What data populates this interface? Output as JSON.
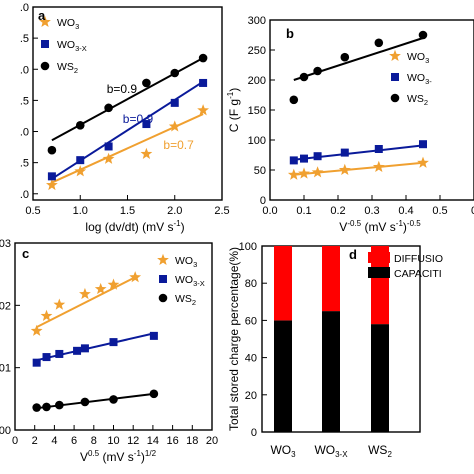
{
  "colors": {
    "orange": "#F0A030",
    "blue": "#0A1A9A",
    "black": "#000000",
    "red": "#FF0000"
  },
  "chart_data": [
    {
      "type": "scatter",
      "panel": "a",
      "xlabel": "log (dv/dt) (mV s",
      "xlabel_sup": "-1",
      "xlabel_end": ")",
      "xlim": [
        0.5,
        2.5
      ],
      "ylim": [
        0.95,
        2.5
      ],
      "xticks": [
        "0.5",
        "1.0",
        "1.5",
        "2.0",
        "2.5"
      ],
      "yticks": [
        {
          "v": 1.0,
          "t": ".0"
        },
        {
          "v": 1.25,
          "t": ".5"
        },
        {
          "v": 1.5,
          "t": ".0"
        },
        {
          "v": 1.75,
          "t": ".5"
        },
        {
          "v": 2.0,
          "t": ".0"
        },
        {
          "v": 2.25,
          "t": ".5"
        },
        {
          "v": 2.5,
          "t": ".0"
        }
      ],
      "series": [
        {
          "name": "WO",
          "sub": "3",
          "color": "orange",
          "marker": "star",
          "x": [
            0.7,
            1.0,
            1.3,
            1.7,
            2.0,
            2.3
          ],
          "y": [
            1.07,
            1.18,
            1.28,
            1.32,
            1.54,
            1.67
          ],
          "fit": [
            [
              0.7,
              1.09
            ],
            [
              2.3,
              1.64
            ]
          ]
        },
        {
          "name": "WO",
          "sub": "3-X",
          "color": "blue",
          "marker": "square",
          "x": [
            0.7,
            1.0,
            1.3,
            1.7,
            2.0,
            2.3
          ],
          "y": [
            1.14,
            1.27,
            1.38,
            1.56,
            1.73,
            1.89
          ],
          "fit": [
            [
              0.7,
              1.12
            ],
            [
              2.3,
              1.9
            ]
          ]
        },
        {
          "name": "WS",
          "sub": "2",
          "color": "black",
          "marker": "circle",
          "x": [
            0.7,
            1.0,
            1.3,
            1.7,
            2.0,
            2.3
          ],
          "y": [
            1.35,
            1.55,
            1.69,
            1.89,
            1.97,
            2.09
          ],
          "fit": [
            [
              0.7,
              1.43
            ],
            [
              2.3,
              2.09
            ]
          ]
        }
      ],
      "annotations": [
        {
          "text": "b=0.9",
          "x": 1.28,
          "y": 1.81,
          "color": "black"
        },
        {
          "text": "b=0.9",
          "x": 1.45,
          "y": 1.57,
          "color": "blue"
        },
        {
          "text": "b=0.7",
          "x": 1.88,
          "y": 1.36,
          "color": "orange"
        }
      ]
    },
    {
      "type": "scatter",
      "panel": "b",
      "ylabel": "C (F g",
      "ylabel_sup": "-1",
      "ylabel_end": ")",
      "xlabel": "V",
      "xlabel_sup": "-0.5",
      "xlabel_mid": " (mV s",
      "xlabel_sup2": "-1",
      "xlabel_end": ")",
      "xlabel_sup3": "-0.5",
      "xlim": [
        0.0,
        0.6
      ],
      "ylim": [
        0,
        300
      ],
      "xticks": [
        {
          "v": 0.0,
          "t": "0.0"
        },
        {
          "v": 0.1,
          "t": "0.1"
        },
        {
          "v": 0.2,
          "t": "0.2"
        },
        {
          "v": 0.3,
          "t": "0.3"
        },
        {
          "v": 0.4,
          "t": "0.4"
        },
        {
          "v": 0.5,
          "t": "0.5"
        },
        {
          "v": 0.6,
          "t": "0"
        }
      ],
      "yticks": [
        "0",
        "50",
        "100",
        "150",
        "200",
        "250",
        "300"
      ],
      "series": [
        {
          "name": "WO",
          "sub": "3",
          "color": "orange",
          "marker": "star",
          "x": [
            0.07,
            0.1,
            0.14,
            0.22,
            0.32,
            0.45
          ],
          "y": [
            42,
            44,
            46,
            50,
            55,
            62
          ],
          "fit": [
            [
              0.07,
              42
            ],
            [
              0.45,
              62
            ]
          ]
        },
        {
          "name": "WO",
          "sub": "3-",
          "color": "blue",
          "marker": "square",
          "x": [
            0.07,
            0.1,
            0.14,
            0.22,
            0.32,
            0.45
          ],
          "y": [
            66,
            69,
            73,
            79,
            85,
            93
          ],
          "fit": [
            [
              0.07,
              67
            ],
            [
              0.45,
              91
            ]
          ]
        },
        {
          "name": "WS",
          "sub": "2",
          "color": "black",
          "marker": "circle",
          "x": [
            0.07,
            0.1,
            0.14,
            0.22,
            0.32,
            0.45
          ],
          "y": [
            167,
            205,
            215,
            238,
            262,
            275
          ],
          "fit": [
            [
              0.07,
              200
            ],
            [
              0.45,
              270
            ]
          ]
        }
      ]
    },
    {
      "type": "scatter",
      "panel": "c",
      "xlabel": "V",
      "xlabel_sup": "0.5",
      "xlabel_mid": " (mV s",
      "xlabel_sup2": "-1",
      "xlabel_end": ")",
      "xlabel_sup3": "1/2",
      "xlim": [
        0,
        20
      ],
      "ylim": [
        0,
        0.03
      ],
      "xticks": [
        "0",
        "2",
        "4",
        "6",
        "8",
        "10",
        "12",
        "14",
        "16",
        "18",
        "20"
      ],
      "yticks": [
        {
          "v": 0.0,
          "t": "00"
        },
        {
          "v": 0.01,
          "t": "01"
        },
        {
          "v": 0.02,
          "t": "02"
        },
        {
          "v": 0.03,
          "t": "03"
        }
      ],
      "series": [
        {
          "name": "WO",
          "sub": "3",
          "color": "orange",
          "marker": "star",
          "x": [
            2.2,
            3.2,
            4.5,
            7.1,
            8.7,
            10.0,
            12.2
          ],
          "y": [
            0.0159,
            0.0183,
            0.0201,
            0.0218,
            0.0226,
            0.0233,
            0.0245
          ],
          "fit": [
            [
              2.2,
              0.0165
            ],
            [
              12.2,
              0.0245
            ]
          ]
        },
        {
          "name": "WO",
          "sub": "3-X",
          "color": "blue",
          "marker": "square",
          "x": [
            2.2,
            3.2,
            4.5,
            6.3,
            7.1,
            10.0,
            14.1
          ],
          "y": [
            0.0108,
            0.0117,
            0.0122,
            0.0127,
            0.0131,
            0.0141,
            0.0151
          ],
          "fit": [
            [
              2.2,
              0.0112
            ],
            [
              14.1,
              0.0155
            ]
          ]
        },
        {
          "name": "WS",
          "sub": "2",
          "color": "black",
          "marker": "circle",
          "x": [
            2.2,
            3.2,
            4.5,
            7.1,
            10.0,
            14.1
          ],
          "y": [
            0.0036,
            0.0037,
            0.004,
            0.0045,
            0.0049,
            0.0058
          ],
          "fit": [
            [
              2.2,
              0.0035
            ],
            [
              14.1,
              0.0058
            ]
          ]
        }
      ]
    },
    {
      "type": "bar",
      "panel": "d",
      "ylabel": "Total stored charge percentage(%)",
      "ylim": [
        0,
        100
      ],
      "yticks": [
        "0",
        "20",
        "40",
        "60",
        "80",
        "100"
      ],
      "categories": [
        {
          "name": "WO",
          "sub": "3"
        },
        {
          "name": "WO",
          "sub": "3-X"
        },
        {
          "name": "WS",
          "sub": "2"
        }
      ],
      "series": [
        {
          "name": "CAPACITI",
          "color": "black",
          "values": [
            60,
            65,
            58
          ]
        },
        {
          "name": "DIFFUSIO",
          "color": "red",
          "values": [
            40,
            35,
            42
          ]
        }
      ]
    }
  ],
  "panel_labels": {
    "a": "a",
    "b": "b",
    "c": "c",
    "d": "d"
  }
}
